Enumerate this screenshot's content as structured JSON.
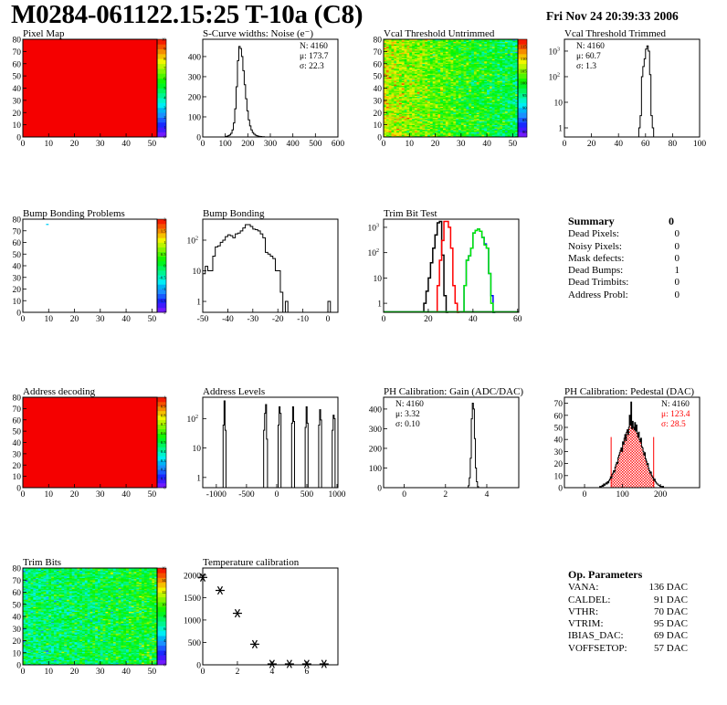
{
  "header": {
    "title": "M0284-061122.15:25 T-10a (C8)",
    "date": "Fri Nov 24 20:39:33 2006"
  },
  "summary": {
    "title": "Summary",
    "total": "0",
    "rows": [
      {
        "label": "Dead Pixels:",
        "value": "0"
      },
      {
        "label": "Noisy Pixels:",
        "value": "0"
      },
      {
        "label": "Mask defects:",
        "value": "0"
      },
      {
        "label": "Dead Bumps:",
        "value": "1"
      },
      {
        "label": "Dead Trimbits:",
        "value": "0"
      },
      {
        "label": "Address Probl:",
        "value": "0"
      }
    ]
  },
  "op_parameters": {
    "title": "Op. Parameters",
    "rows": [
      {
        "label": "VANA:",
        "value": "136 DAC"
      },
      {
        "label": "CALDEL:",
        "value": "91 DAC"
      },
      {
        "label": "VTHR:",
        "value": "70 DAC"
      },
      {
        "label": "VTRIM:",
        "value": "95 DAC"
      },
      {
        "label": "IBIAS_DAC:",
        "value": "69 DAC"
      },
      {
        "label": "VOFFSETOP:",
        "value": "57 DAC"
      }
    ]
  },
  "chart_data": [
    {
      "type": "heatmap",
      "title": "Pixel Map",
      "xlim": [
        0,
        52
      ],
      "ylim": [
        0,
        80
      ],
      "xticks": [
        0,
        10,
        20,
        30,
        40,
        50
      ],
      "yticks": [
        0,
        10,
        20,
        30,
        40,
        50,
        60,
        70,
        80
      ],
      "zlim": [
        0,
        10
      ],
      "zticks": [
        0,
        1,
        2,
        3,
        4,
        5,
        6,
        7,
        8,
        9,
        10
      ],
      "fill_value": 10
    },
    {
      "type": "histogram",
      "title": "S-Curve widths: Noise (e⁻)",
      "xlim": [
        0,
        600
      ],
      "ylim": [
        0,
        486
      ],
      "xticks": [
        0,
        100,
        200,
        300,
        400,
        500,
        600
      ],
      "yticks": [
        0,
        100,
        200,
        300,
        400
      ],
      "stats": {
        "align": "right",
        "lines": [
          {
            "text": "N: 4160",
            "color": "#000000"
          },
          {
            "text": "μ: 173.7",
            "color": "#000000"
          },
          {
            "text": "σ: 22.3",
            "color": "#000000"
          }
        ]
      },
      "series": [
        {
          "color": "#000000",
          "x_start": 100,
          "bin_width": 6,
          "counts": [
            2,
            4,
            6,
            10,
            18,
            35,
            70,
            140,
            250,
            380,
            450,
            440,
            400,
            330,
            260,
            190,
            130,
            85,
            55,
            35,
            22,
            14,
            9,
            6,
            4,
            3,
            2,
            1,
            1
          ]
        }
      ]
    },
    {
      "type": "heatmap",
      "title": "Vcal Threshold Untrimmed",
      "xlim": [
        0,
        52
      ],
      "ylim": [
        0,
        80
      ],
      "xticks": [
        0,
        10,
        20,
        30,
        40,
        50
      ],
      "yticks": [
        0,
        10,
        20,
        30,
        40,
        50,
        60,
        70,
        80
      ],
      "zlim": [
        78,
        118
      ],
      "zticks": [
        80,
        85,
        90,
        95,
        100,
        105,
        110,
        115
      ],
      "z_mean_left": 107,
      "z_mean_right": 97,
      "z_spread": 3.5
    },
    {
      "type": "histogram",
      "title": "Vcal Threshold Trimmed",
      "xlim": [
        0,
        100
      ],
      "ylim": [
        0.44,
        2900
      ],
      "ylog": true,
      "xticks": [
        0,
        20,
        40,
        60,
        80,
        100
      ],
      "yticks": [
        1,
        10,
        100,
        1000
      ],
      "stats": {
        "align": "left",
        "lines": [
          {
            "text": "N: 4160",
            "color": "#000000"
          },
          {
            "text": "μ: 60.7",
            "color": "#000000"
          },
          {
            "text": "σ:  1.3",
            "color": "#000000"
          }
        ]
      },
      "series": [
        {
          "color": "#000000",
          "x_start": 55,
          "bin_width": 1,
          "counts": [
            1,
            3,
            100,
            250,
            500,
            1200,
            1600,
            1000,
            120,
            3,
            1
          ]
        }
      ]
    },
    {
      "type": "heatmap",
      "title": "Bump Bonding Problems",
      "xlim": [
        0,
        52
      ],
      "ylim": [
        0,
        80
      ],
      "xticks": [
        0,
        10,
        20,
        30,
        40,
        50
      ],
      "yticks": [
        0,
        10,
        20,
        30,
        40,
        50,
        60,
        70,
        80
      ],
      "zlim": [
        -2,
        2
      ],
      "zticks": [
        -2,
        -1.5,
        -1,
        -0.5,
        0,
        0.5,
        1,
        1.5,
        2
      ],
      "fill_value": null,
      "pixels": [
        [
          9,
          75,
          -0.8
        ]
      ]
    },
    {
      "type": "histogram",
      "title": "Bump Bonding",
      "xlim": [
        -50,
        4
      ],
      "ylim": [
        0.44,
        485
      ],
      "ylog": true,
      "xticks": [
        -50,
        -40,
        -30,
        -20,
        -10,
        0
      ],
      "yticks": [
        1,
        10,
        100
      ],
      "series": [
        {
          "color": "#000000",
          "x_start": -50,
          "bin_width": 1,
          "counts": [
            8,
            14,
            10,
            10,
            30,
            60,
            65,
            85,
            100,
            130,
            150,
            140,
            120,
            160,
            170,
            200,
            250,
            320,
            320,
            280,
            230,
            220,
            200,
            160,
            120,
            40,
            35,
            30,
            25,
            10,
            10,
            2,
            0,
            1,
            0,
            0,
            0,
            0,
            0,
            0,
            0,
            0,
            0,
            0,
            0,
            0,
            0,
            0,
            0,
            0,
            1,
            0
          ]
        }
      ]
    },
    {
      "type": "histogram",
      "title": "Trim Bit Test",
      "xlim": [
        0,
        60.5
      ],
      "ylim": [
        0.44,
        2100
      ],
      "ylog": true,
      "xticks": [
        0,
        20,
        40,
        60
      ],
      "yticks": [
        1,
        10,
        100,
        1000
      ],
      "series": [
        {
          "color": "#000000",
          "x_start": 18,
          "bin_width": 1,
          "counts": [
            1,
            3,
            10,
            40,
            150,
            500,
            1500,
            1700,
            80,
            2,
            0
          ]
        },
        {
          "color": "#ff0000",
          "x_start": 24,
          "bin_width": 1,
          "counts": [
            5,
            50,
            300,
            1700,
            1700,
            1000,
            150,
            5,
            1,
            0
          ]
        },
        {
          "color": "#0000ff",
          "x_start": 36,
          "bin_width": 1,
          "counts": [
            5,
            50,
            75,
            150,
            600,
            750,
            850,
            700,
            400,
            220,
            150,
            15,
            2,
            0
          ]
        },
        {
          "color": "#00ee00",
          "x_start": 36,
          "bin_width": 1,
          "counts": [
            5,
            50,
            75,
            150,
            600,
            750,
            850,
            700,
            400,
            200,
            150,
            15,
            1,
            0
          ]
        }
      ]
    },
    {
      "type": "heatmap",
      "title": "Address decoding",
      "xlim": [
        0,
        52
      ],
      "ylim": [
        0,
        80
      ],
      "xticks": [
        0,
        10,
        20,
        30,
        40,
        50
      ],
      "yticks": [
        0,
        10,
        20,
        30,
        40,
        50,
        60,
        70,
        80
      ],
      "zlim": [
        0,
        1
      ],
      "zticks": [
        0,
        0.1,
        0.2,
        0.3,
        0.4,
        0.5,
        0.6,
        0.7,
        0.8,
        0.9,
        1
      ],
      "fill_value": 1
    },
    {
      "type": "histogram",
      "title": "Address Levels",
      "xlim": [
        -1225,
        1015
      ],
      "ylim": [
        0.45,
        530
      ],
      "ylog": true,
      "xticks": [
        -1000,
        -500,
        0,
        500,
        1000
      ],
      "yticks": [
        1,
        10,
        100
      ],
      "series": [
        {
          "color": "#000000",
          "bin_width": 16,
          "bins": [
            [
              -888,
              60
            ],
            [
              -872,
              400
            ],
            [
              -856,
              40
            ],
            [
              -216,
              40
            ],
            [
              -200,
              150
            ],
            [
              -184,
              300
            ],
            [
              -168,
              20
            ],
            [
              24,
              60
            ],
            [
              40,
              250
            ],
            [
              56,
              150
            ],
            [
              248,
              70
            ],
            [
              264,
              250
            ],
            [
              280,
              80
            ],
            [
              472,
              50
            ],
            [
              488,
              250
            ],
            [
              504,
              70
            ],
            [
              696,
              60
            ],
            [
              712,
              200
            ],
            [
              728,
              90
            ],
            [
              920,
              40
            ],
            [
              936,
              130
            ],
            [
              952,
              100
            ]
          ]
        }
      ]
    },
    {
      "type": "histogram",
      "title": "PH Calibration: Gain (ADC/DAC)",
      "xlim": [
        -1,
        5.55
      ],
      "ylim": [
        0,
        460
      ],
      "xticks": [
        0,
        2,
        4
      ],
      "yticks": [
        0,
        100,
        200,
        300,
        400
      ],
      "stats": {
        "align": "left",
        "lines": [
          {
            "text": "N: 4160",
            "color": "#000000"
          },
          {
            "text": "μ: 3.32",
            "color": "#000000"
          },
          {
            "text": "σ: 0.10",
            "color": "#000000"
          }
        ]
      },
      "series": [
        {
          "color": "#000000",
          "x_start": 3.1,
          "bin_width": 0.05,
          "counts": [
            10,
            50,
            150,
            350,
            430,
            400,
            250,
            100,
            30,
            5
          ]
        }
      ]
    },
    {
      "type": "histogram",
      "title": "PH Calibration: Pedestal (DAC)",
      "xlim": [
        -53,
        303
      ],
      "ylim": [
        0,
        75
      ],
      "xticks": [
        0,
        100,
        200
      ],
      "yticks": [
        0,
        10,
        20,
        30,
        40,
        50,
        60,
        70
      ],
      "stats": {
        "align": "right",
        "lines": [
          {
            "text": "N: 4160",
            "color": "#000000"
          },
          {
            "text": "μ: 123.4",
            "color": "#ff0000"
          },
          {
            "text": "σ: 28.5",
            "color": "#ff0000"
          }
        ]
      },
      "fit": {
        "range": [
          70,
          182
        ],
        "level": 42,
        "color": "#ff0000"
      },
      "series": [
        {
          "color": "#000000",
          "x_start": 40,
          "bin_width": 2,
          "counts": [
            1,
            0,
            1,
            2,
            1,
            3,
            2,
            3,
            4,
            3,
            5,
            4,
            6,
            7,
            9,
            8,
            11,
            12,
            14,
            13,
            17,
            19,
            21,
            20,
            25,
            27,
            29,
            31,
            33,
            30,
            38,
            36,
            41,
            44,
            39,
            46,
            48,
            44,
            50,
            60,
            52,
            71,
            49,
            55,
            50,
            48,
            54,
            47,
            52,
            45,
            42,
            46,
            40,
            38,
            41,
            34,
            33,
            30,
            27,
            29,
            24,
            22,
            19,
            20,
            16,
            14,
            12,
            13,
            10,
            9,
            8,
            6,
            7,
            5,
            4,
            3,
            3,
            2,
            2,
            1,
            1,
            1,
            0,
            1
          ]
        }
      ]
    },
    {
      "type": "heatmap",
      "title": "Trim Bits",
      "xlim": [
        0,
        52
      ],
      "ylim": [
        0,
        80
      ],
      "xticks": [
        0,
        10,
        20,
        30,
        40,
        50
      ],
      "yticks": [
        0,
        10,
        20,
        30,
        40,
        50,
        60,
        70,
        80
      ],
      "zlim": [
        0,
        16
      ],
      "zticks": [
        0,
        2,
        4,
        6,
        8,
        10,
        12,
        14,
        16
      ],
      "z_mean_left": 7.2,
      "z_mean_right": 8.6,
      "z_spread": 1.4
    },
    {
      "type": "scatter",
      "title": "Temperature calibration",
      "xlim": [
        0,
        7.8
      ],
      "ylim": [
        0,
        2160
      ],
      "xticks": [
        0,
        2,
        4,
        6
      ],
      "yticks": [
        0,
        500,
        1000,
        1500,
        2000
      ],
      "marker": "star",
      "x": [
        0,
        1,
        2,
        3,
        4,
        5,
        6,
        7
      ],
      "y": [
        1950,
        1660,
        1150,
        460,
        20,
        20,
        20,
        20
      ]
    }
  ]
}
